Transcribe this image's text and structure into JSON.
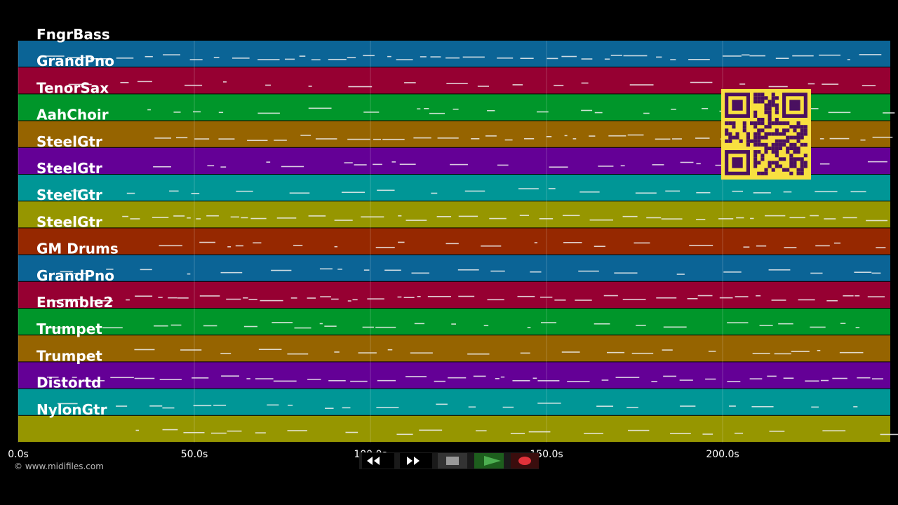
{
  "tracks": [
    {
      "name": "FngrBass",
      "color": "#0b6496"
    },
    {
      "name": "GrandPno",
      "color": "#960032"
    },
    {
      "name": "TenorSax",
      "color": "#00962a"
    },
    {
      "name": "AahChoir",
      "color": "#966400"
    },
    {
      "name": "SteelGtr",
      "color": "#640096"
    },
    {
      "name": "SteelGtr",
      "color": "#009696"
    },
    {
      "name": "SteelGtr",
      "color": "#969600"
    },
    {
      "name": "SteelGtr",
      "color": "#962800"
    },
    {
      "name": "GM Drums",
      "color": "#0b6496"
    },
    {
      "name": "GrandPno",
      "color": "#960032"
    },
    {
      "name": "Ensmble2",
      "color": "#00962a"
    },
    {
      "name": "Trumpet",
      "color": "#966400"
    },
    {
      "name": "Trumpet",
      "color": "#640096"
    },
    {
      "name": "Distortd",
      "color": "#009696"
    },
    {
      "name": "NylonGtr",
      "color": "#969600"
    }
  ],
  "timeline": {
    "xlim": [
      0,
      247.6
    ],
    "ticks": [
      {
        "value": 0,
        "label": "0.0s"
      },
      {
        "value": 50,
        "label": "50.0s"
      },
      {
        "value": 100,
        "label": "100.0s"
      },
      {
        "value": 150,
        "label": "150.0s"
      },
      {
        "value": 200,
        "label": "200.0s"
      }
    ]
  },
  "footer": "© www.midifiles.com"
}
